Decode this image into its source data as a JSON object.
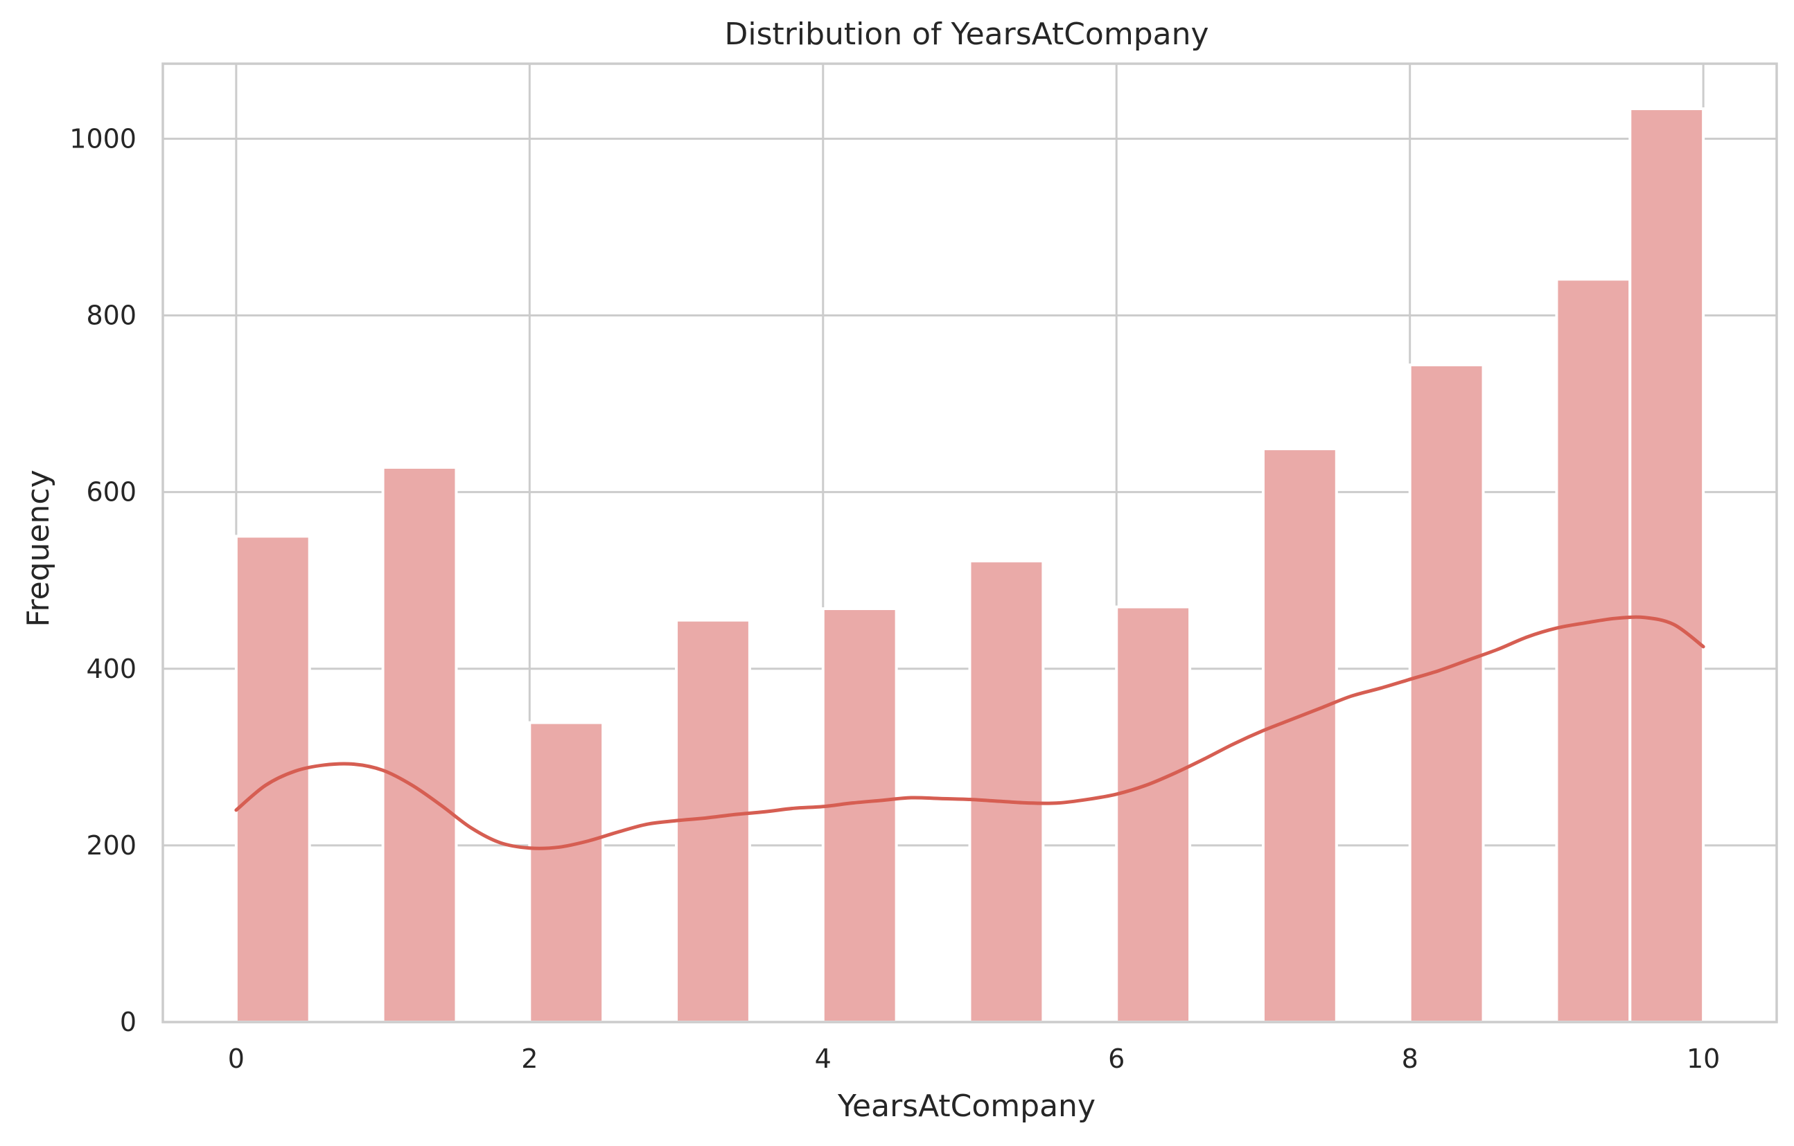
{
  "chart_data": {
    "type": "bar",
    "title": "Distribution of YearsAtCompany",
    "xlabel": "YearsAtCompany",
    "ylabel": "Frequency",
    "xlim": [
      -0.5,
      10.5
    ],
    "ylim": [
      0,
      1085
    ],
    "xticks": [
      0,
      2,
      4,
      6,
      8,
      10
    ],
    "yticks": [
      0,
      200,
      400,
      600,
      800,
      1000
    ],
    "grid": true,
    "bin_width": 0.5,
    "bins": [
      {
        "x0": 0.0,
        "x1": 0.5,
        "count": 550
      },
      {
        "x0": 0.5,
        "x1": 1.0,
        "count": 0
      },
      {
        "x0": 1.0,
        "x1": 1.5,
        "count": 628
      },
      {
        "x0": 1.5,
        "x1": 2.0,
        "count": 0
      },
      {
        "x0": 2.0,
        "x1": 2.5,
        "count": 339
      },
      {
        "x0": 2.5,
        "x1": 3.0,
        "count": 0
      },
      {
        "x0": 3.0,
        "x1": 3.5,
        "count": 455
      },
      {
        "x0": 3.5,
        "x1": 4.0,
        "count": 0
      },
      {
        "x0": 4.0,
        "x1": 4.5,
        "count": 468
      },
      {
        "x0": 4.5,
        "x1": 5.0,
        "count": 0
      },
      {
        "x0": 5.0,
        "x1": 5.5,
        "count": 522
      },
      {
        "x0": 5.5,
        "x1": 6.0,
        "count": 0
      },
      {
        "x0": 6.0,
        "x1": 6.5,
        "count": 470
      },
      {
        "x0": 6.5,
        "x1": 7.0,
        "count": 0
      },
      {
        "x0": 7.0,
        "x1": 7.5,
        "count": 649
      },
      {
        "x0": 7.5,
        "x1": 8.0,
        "count": 0
      },
      {
        "x0": 8.0,
        "x1": 8.5,
        "count": 744
      },
      {
        "x0": 8.5,
        "x1": 9.0,
        "count": 0
      },
      {
        "x0": 9.0,
        "x1": 9.5,
        "count": 841
      },
      {
        "x0": 9.5,
        "x1": 10.0,
        "count": 1034
      }
    ],
    "kde_curve": {
      "x": [
        0.0,
        0.2,
        0.4,
        0.6,
        0.8,
        1.0,
        1.2,
        1.4,
        1.6,
        1.8,
        2.0,
        2.2,
        2.4,
        2.6,
        2.8,
        3.0,
        3.2,
        3.4,
        3.6,
        3.8,
        4.0,
        4.2,
        4.4,
        4.6,
        4.8,
        5.0,
        5.2,
        5.4,
        5.6,
        5.8,
        6.0,
        6.2,
        6.4,
        6.6,
        6.8,
        7.0,
        7.2,
        7.4,
        7.6,
        7.8,
        8.0,
        8.2,
        8.4,
        8.6,
        8.8,
        9.0,
        9.2,
        9.4,
        9.6,
        9.8,
        10.0
      ],
      "y": [
        240,
        268,
        284,
        291,
        292,
        285,
        268,
        245,
        220,
        203,
        197,
        198,
        205,
        215,
        224,
        228,
        231,
        235,
        238,
        242,
        244,
        248,
        251,
        254,
        253,
        252,
        250,
        248,
        248,
        252,
        258,
        268,
        282,
        298,
        315,
        330,
        343,
        356,
        369,
        378,
        388,
        398,
        410,
        422,
        436,
        446,
        452,
        457,
        458,
        450,
        425
      ]
    },
    "colors": {
      "bar_fill": "#eaaaa8",
      "kde_line": "#d65e52",
      "grid": "#cccccc",
      "axes_edge": "#cccccc",
      "background": "#ffffff"
    }
  }
}
